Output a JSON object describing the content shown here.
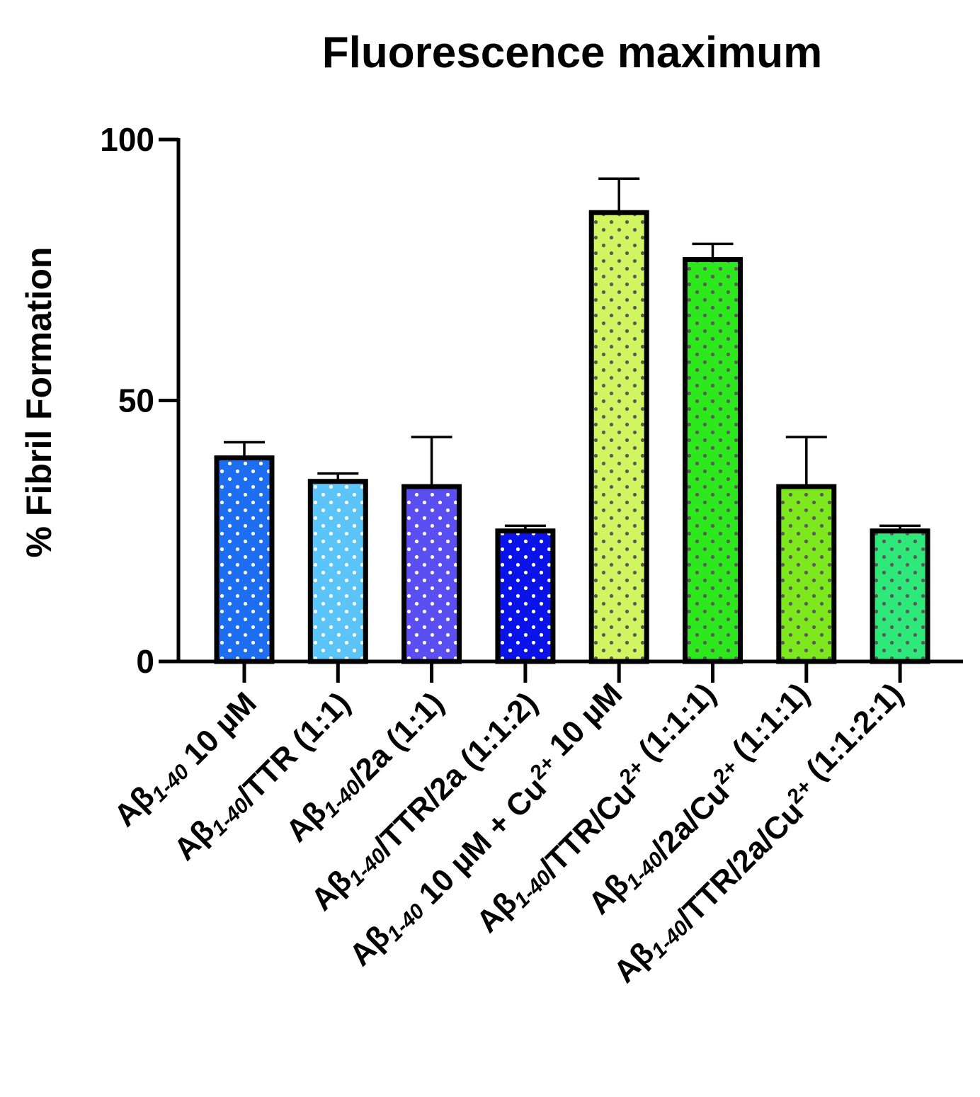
{
  "chart_data": {
    "type": "bar",
    "title": "Fluorescence maximum",
    "xlabel": "",
    "ylabel": "% Fibril Formation",
    "ylim": [
      0,
      100
    ],
    "yticks": [
      "0",
      "50",
      "100"
    ],
    "categories": [
      "Aβ1-40 10 µM",
      "Aβ1-40/TTR (1:1)",
      "Aβ1-40/2a (1:1)",
      "Aβ1-40/TTR/2a (1:1:2)",
      "Aβ1-40 10 µM + Cu2+ 10 µM",
      "Aβ1-40/TTR/Cu2+ (1:1:1)",
      "Aβ1-40/2a/Cu2+ (1:1:1)",
      "Aβ1-40/TTR/2a/Cu2+ (1:1:2:1)"
    ],
    "category_parts": [
      [
        {
          "t": "Aβ"
        },
        {
          "t": "1-40",
          "sub": true
        },
        {
          "t": " 10 µM"
        }
      ],
      [
        {
          "t": "Aβ"
        },
        {
          "t": "1-40",
          "sub": true
        },
        {
          "t": "/TTR (1:1)"
        }
      ],
      [
        {
          "t": "Aβ"
        },
        {
          "t": "1-40",
          "sub": true
        },
        {
          "t": "/2a (1:1)"
        }
      ],
      [
        {
          "t": "Aβ"
        },
        {
          "t": "1-40",
          "sub": true
        },
        {
          "t": "/TTR/2a (1:1:2)"
        }
      ],
      [
        {
          "t": "Aβ"
        },
        {
          "t": "1-40",
          "sub": true
        },
        {
          "t": " 10 µM + Cu"
        },
        {
          "t": "2+",
          "sup": true
        },
        {
          "t": " 10 µM"
        }
      ],
      [
        {
          "t": "Aβ"
        },
        {
          "t": "1-40",
          "sub": true
        },
        {
          "t": "/TTR/Cu"
        },
        {
          "t": "2+",
          "sup": true
        },
        {
          "t": " (1:1:1)"
        }
      ],
      [
        {
          "t": "Aβ"
        },
        {
          "t": "1-40",
          "sub": true
        },
        {
          "t": "/2a/Cu"
        },
        {
          "t": "2+",
          "sup": true
        },
        {
          "t": " (1:1:1)"
        }
      ],
      [
        {
          "t": "Aβ"
        },
        {
          "t": "1-40",
          "sub": true
        },
        {
          "t": "/TTR/2a/Cu"
        },
        {
          "t": "2+",
          "sup": true
        },
        {
          "t": " (1:1:2:1)"
        }
      ]
    ],
    "values": [
      39,
      34.5,
      33.5,
      25,
      86,
      77,
      33.5,
      25
    ],
    "errors": [
      3,
      1.5,
      9.5,
      1,
      6.5,
      3,
      9.5,
      1
    ],
    "colors": [
      "#1e6ef2",
      "#5bc4f8",
      "#5b4ff2",
      "#0a14e8",
      "#d0f560",
      "#2ee81e",
      "#7ee81e",
      "#2ee87a"
    ],
    "dot_colors": [
      "#ffffff",
      "#ffffff",
      "#ffffff",
      "#ffffff",
      "#5a5a5a",
      "#5a5a5a",
      "#5a5a5a",
      "#5a5a5a"
    ],
    "grid": false,
    "legend": "none"
  }
}
